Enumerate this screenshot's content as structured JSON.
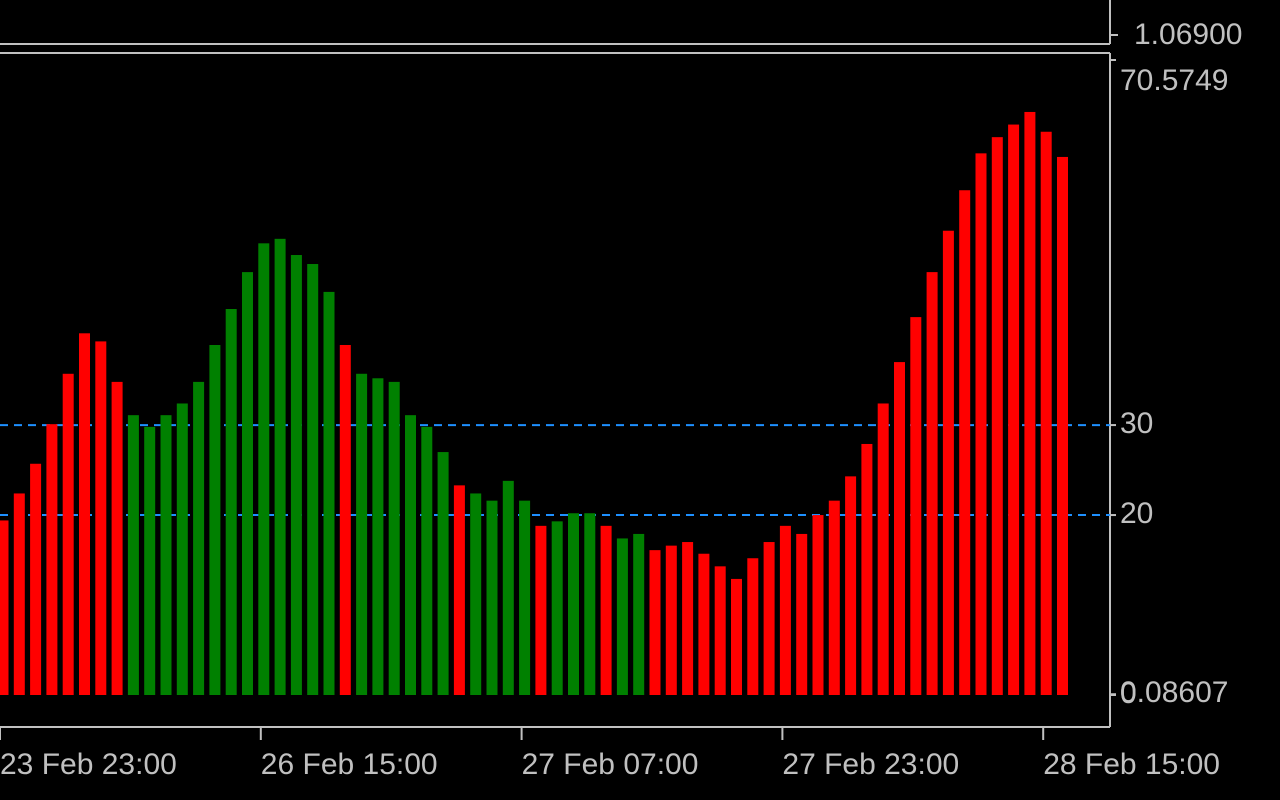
{
  "chart_data": {
    "type": "bar",
    "categories": [
      "23 Feb 23:00",
      null,
      null,
      null,
      null,
      null,
      null,
      null,
      null,
      null,
      null,
      null,
      null,
      null,
      null,
      null,
      "26 Feb 15:00",
      null,
      null,
      null,
      null,
      null,
      null,
      null,
      null,
      null,
      null,
      null,
      null,
      null,
      null,
      null,
      "27 Feb 07:00",
      null,
      null,
      null,
      null,
      null,
      null,
      null,
      null,
      null,
      null,
      null,
      null,
      null,
      null,
      null,
      "27 Feb 23:00",
      null,
      null,
      null,
      null,
      null,
      null,
      null,
      null,
      null,
      null,
      null,
      null,
      null,
      null,
      null,
      "28 Feb 15:00",
      null
    ],
    "values": [
      19.4,
      22.4,
      25.7,
      30.1,
      35.7,
      40.2,
      39.3,
      34.8,
      31.1,
      29.8,
      31.1,
      32.4,
      34.8,
      38.9,
      42.9,
      47.0,
      50.2,
      50.7,
      48.9,
      47.9,
      44.8,
      38.9,
      35.7,
      35.2,
      34.8,
      31.1,
      29.8,
      27.0,
      23.3,
      22.4,
      21.6,
      23.8,
      21.6,
      18.8,
      19.3,
      20.2,
      20.2,
      18.8,
      17.4,
      17.9,
      16.1,
      16.6,
      17.0,
      15.7,
      14.3,
      12.9,
      15.2,
      17.0,
      18.8,
      17.9,
      20.0,
      21.6,
      24.3,
      27.9,
      32.4,
      37.0,
      42.0,
      47.0,
      51.6,
      56.1,
      60.2,
      62.0,
      63.4,
      64.8,
      62.6,
      59.8
    ],
    "colors": [
      "#ff0000",
      "#ff0000",
      "#ff0000",
      "#ff0000",
      "#ff0000",
      "#ff0000",
      "#ff0000",
      "#ff0000",
      "#008000",
      "#008000",
      "#008000",
      "#008000",
      "#008000",
      "#008000",
      "#008000",
      "#008000",
      "#008000",
      "#008000",
      "#008000",
      "#008000",
      "#008000",
      "#ff0000",
      "#008000",
      "#008000",
      "#008000",
      "#008000",
      "#008000",
      "#008000",
      "#ff0000",
      "#008000",
      "#008000",
      "#008000",
      "#008000",
      "#ff0000",
      "#008000",
      "#008000",
      "#008000",
      "#ff0000",
      "#008000",
      "#008000",
      "#ff0000",
      "#ff0000",
      "#ff0000",
      "#ff0000",
      "#ff0000",
      "#ff0000",
      "#ff0000",
      "#ff0000",
      "#ff0000",
      "#ff0000",
      "#ff0000",
      "#ff0000",
      "#ff0000",
      "#ff0000",
      "#ff0000",
      "#ff0000",
      "#ff0000",
      "#ff0000",
      "#ff0000",
      "#ff0000",
      "#ff0000",
      "#ff0000",
      "#ff0000",
      "#ff0000",
      "#ff0000",
      "#ff0000"
    ],
    "ylim": [
      0,
      70.5749
    ],
    "yticks": [
      0,
      0.08607,
      20,
      30,
      70.5749
    ],
    "levels": [
      30,
      20
    ],
    "level_color": "#1e90ff",
    "main_pane": {
      "yticks": [
        {
          "value": 1.069,
          "label": "1.06900"
        }
      ]
    }
  }
}
